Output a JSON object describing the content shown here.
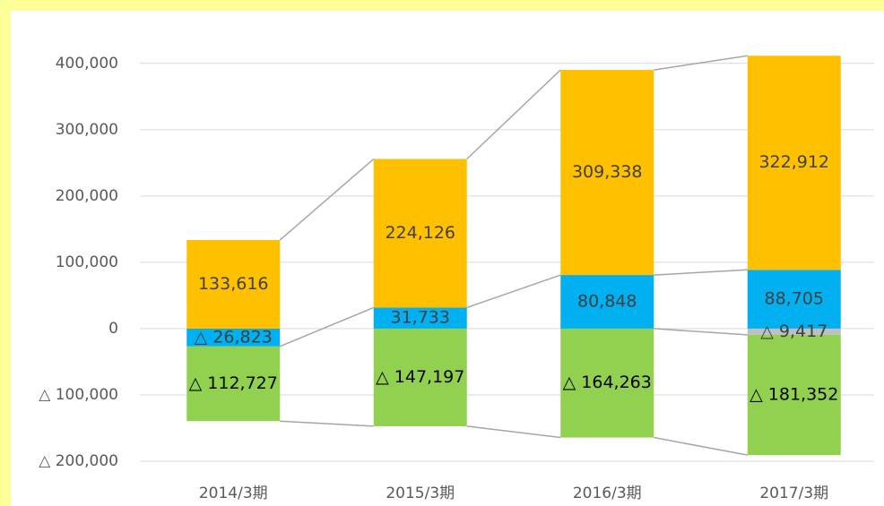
{
  "chart_data": {
    "type": "bar",
    "stacked": true,
    "categories": [
      "2014/3期",
      "2015/3期",
      "2016/3期",
      "2017/3期"
    ],
    "series": [
      {
        "color": "#00b0f0",
        "label_color": "#404040",
        "values": [
          -26823,
          31733,
          80848,
          88705
        ],
        "value_labels": [
          "△ 26,823",
          "31,733",
          "80,848",
          "88,705"
        ]
      },
      {
        "color": "#bfbfbf",
        "label_color": "#404040",
        "values": [
          null,
          null,
          null,
          -9417
        ],
        "value_labels": [
          null,
          null,
          null,
          "△ 9,417"
        ]
      },
      {
        "color": "#ffc000",
        "label_color": "#404040",
        "values": [
          133616,
          224126,
          309338,
          322912
        ],
        "value_labels": [
          "133,616",
          "224,126",
          "309,338",
          "322,912"
        ]
      },
      {
        "color": "#92d050",
        "label_color": "#000000",
        "values": [
          -112727,
          -147197,
          -164263,
          -181352
        ],
        "value_labels": [
          "△ 112,727",
          "△ 147,197",
          "△ 164,263",
          "△ 181,352"
        ]
      }
    ],
    "ylim": [
      -200000,
      420000
    ],
    "yticks": [
      {
        "value": -200000,
        "label": "△ 200,000"
      },
      {
        "value": -100000,
        "label": "△ 100,000"
      },
      0,
      {
        "value": 100000,
        "label": "100,000"
      },
      {
        "value": 200000,
        "label": "200,000"
      },
      {
        "value": 300000,
        "label": "300,000"
      },
      {
        "value": 400000,
        "label": "400,000"
      }
    ],
    "grid": true,
    "connectors": true
  }
}
